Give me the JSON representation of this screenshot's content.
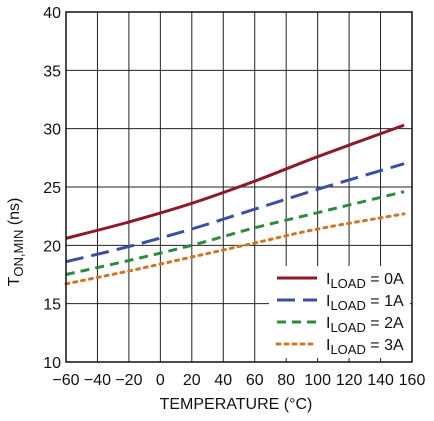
{
  "chart_data": {
    "type": "line",
    "title": "",
    "xlabel": "TEMPERATURE (°C)",
    "ylabel": {
      "main": "T",
      "sub": "ON,MIN",
      "suffix": " (ns)"
    },
    "xlim": [
      -60,
      160
    ],
    "ylim": [
      10,
      40
    ],
    "xticks": [
      -60,
      -40,
      -20,
      0,
      20,
      40,
      60,
      80,
      100,
      120,
      140,
      160
    ],
    "yticks": [
      10,
      15,
      20,
      25,
      30,
      35,
      40
    ],
    "grid": true,
    "legend_position": "bottom-right",
    "series": [
      {
        "name": {
          "main": "I",
          "sub": "LOAD",
          "suffix": " = 0A"
        },
        "color": "#8B1A2B",
        "dash": "solid",
        "x": [
          -60,
          -20,
          20,
          60,
          100,
          155
        ],
        "y": [
          20.6,
          22.0,
          23.6,
          25.5,
          27.6,
          30.3
        ]
      },
      {
        "name": {
          "main": "I",
          "sub": "LOAD",
          "suffix": " = 1A"
        },
        "color": "#3A4FA0",
        "dash": "long-dash",
        "x": [
          -60,
          -20,
          20,
          60,
          100,
          155
        ],
        "y": [
          18.6,
          19.9,
          21.4,
          23.1,
          24.8,
          27.0
        ]
      },
      {
        "name": {
          "main": "I",
          "sub": "LOAD",
          "suffix": " = 2A"
        },
        "color": "#2E8B3E",
        "dash": "dash",
        "x": [
          -60,
          -20,
          20,
          60,
          100,
          155
        ],
        "y": [
          17.5,
          18.7,
          20.0,
          21.5,
          22.8,
          24.6
        ]
      },
      {
        "name": {
          "main": "I",
          "sub": "LOAD",
          "suffix": " = 3A"
        },
        "color": "#C8782A",
        "dash": "dot",
        "x": [
          -60,
          -20,
          20,
          60,
          100,
          155
        ],
        "y": [
          16.7,
          17.8,
          19.0,
          20.2,
          21.4,
          22.7
        ]
      }
    ]
  }
}
